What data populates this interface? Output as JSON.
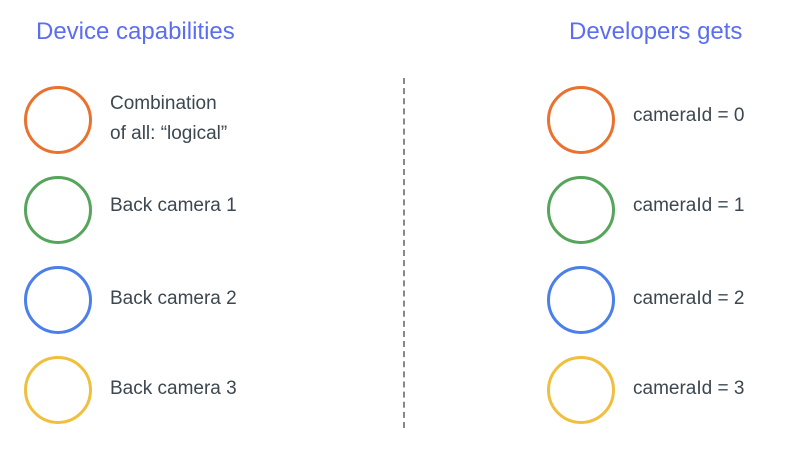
{
  "left": {
    "title": "Device capabilities",
    "items": [
      {
        "line1": "Combination",
        "line2": "of all: “logical”",
        "color": "#e8722e"
      },
      {
        "label": "Back camera 1",
        "color": "#55a55b"
      },
      {
        "label": "Back camera 2",
        "color": "#4b7fe9"
      },
      {
        "label": "Back camera 3",
        "color": "#f0bf3d"
      }
    ]
  },
  "right": {
    "title": "Developers gets",
    "items": [
      {
        "label": "cameraId = 0",
        "color": "#e8722e"
      },
      {
        "label": "cameraId = 1",
        "color": "#55a55b"
      },
      {
        "label": "cameraId = 2",
        "color": "#4b7fe9"
      },
      {
        "label": "cameraId = 3",
        "color": "#f0bf3d"
      }
    ]
  }
}
